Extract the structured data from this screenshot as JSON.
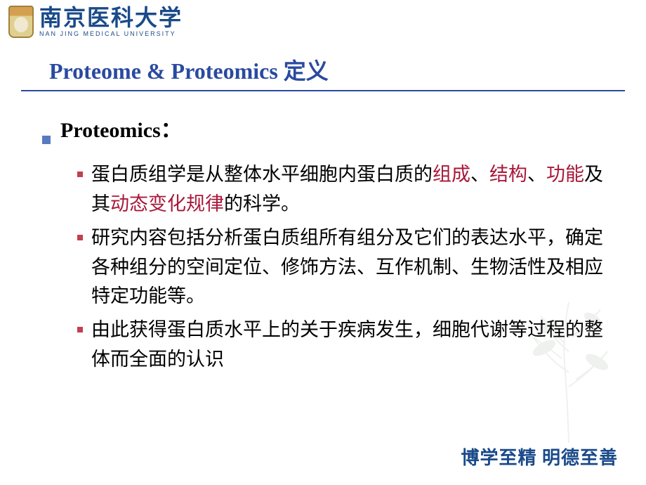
{
  "header": {
    "university_cn": "南京医科大学",
    "university_en": "NAN JING MEDICAL UNIVERSITY"
  },
  "title": "Proteome & Proteomics 定义",
  "main": {
    "heading": "Proteomics：",
    "items": [
      {
        "segments": [
          {
            "t": "蛋白质组学是从整体水平细胞内蛋白质的",
            "hl": false
          },
          {
            "t": "组成",
            "hl": true
          },
          {
            "t": "、",
            "hl": false
          },
          {
            "t": "结构",
            "hl": true
          },
          {
            "t": "、",
            "hl": false
          },
          {
            "t": "功能",
            "hl": true
          },
          {
            "t": "及其",
            "hl": false
          },
          {
            "t": "动态变化规律",
            "hl": true
          },
          {
            "t": "的科学。",
            "hl": false
          }
        ]
      },
      {
        "segments": [
          {
            "t": "研究内容包括分析蛋白质组所有组分及它们的表达水平，确定各种组分的空间定位、修饰方法、互作机制、生物活性及相应特定功能等。",
            "hl": false
          }
        ]
      },
      {
        "segments": [
          {
            "t": "由此获得蛋白质水平上的关于疾病发生，细胞代谢等过程的整体而全面的认识",
            "hl": false
          }
        ]
      }
    ]
  },
  "footer": "博学至精  明德至善",
  "colors": {
    "title": "#2a4aa0",
    "bullet_main": "#5a7ac0",
    "bullet_sub": "#c04050",
    "highlight": "#a8183a",
    "footer": "#1a4a8a"
  }
}
